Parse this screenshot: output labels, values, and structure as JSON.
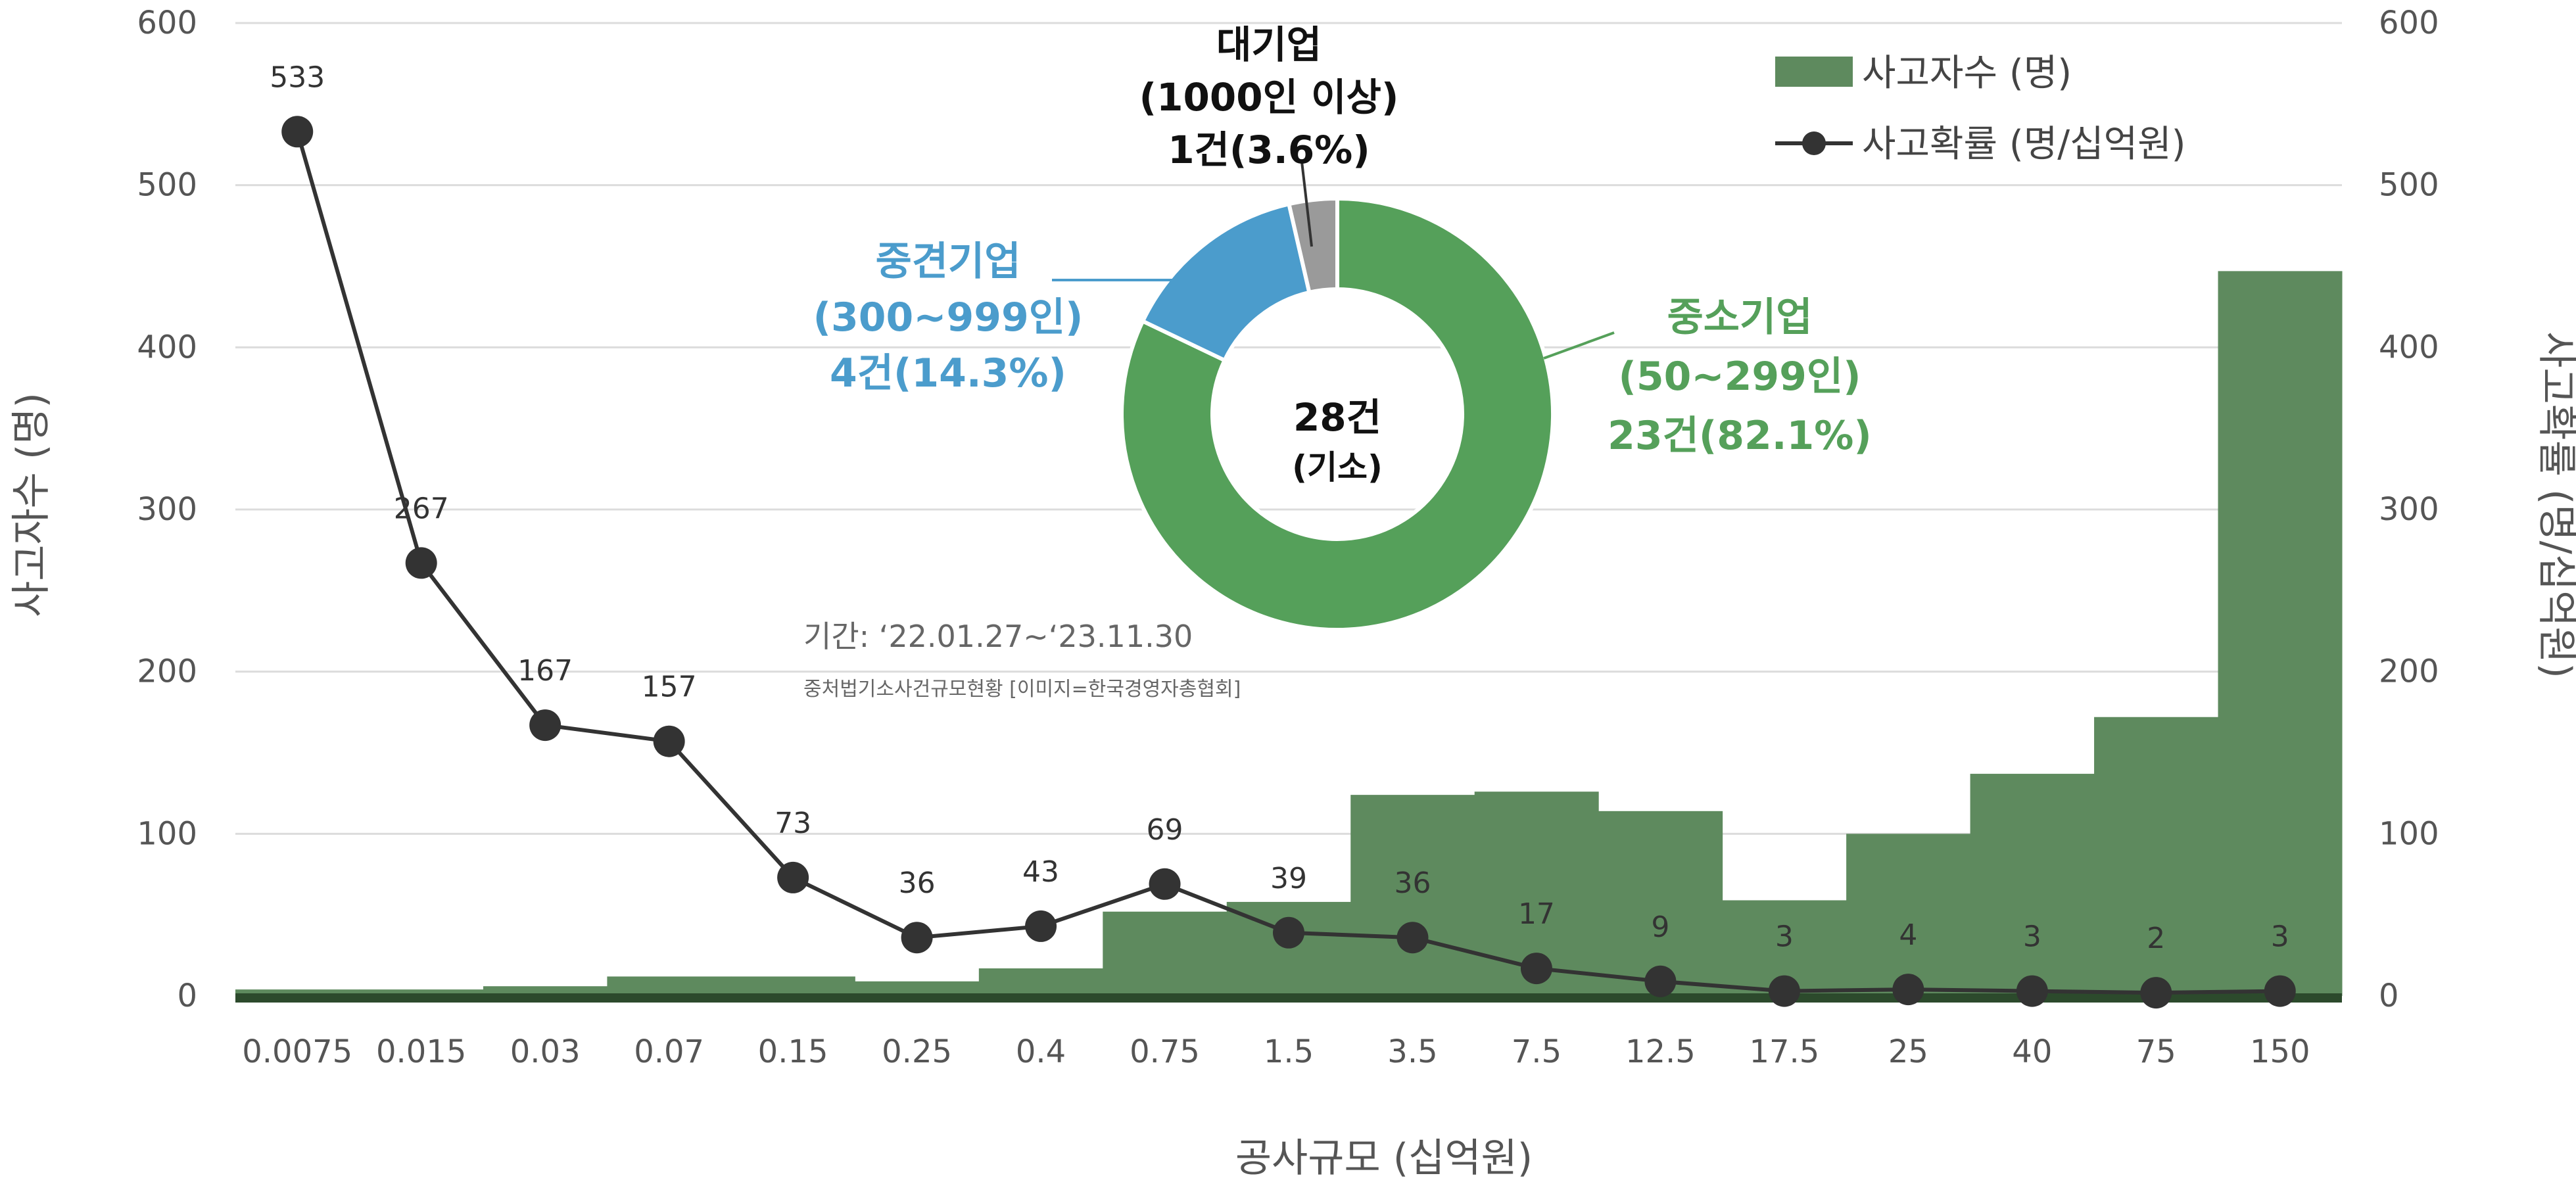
{
  "chart_data": {
    "type": "bar",
    "xlabel": "공사규모 (십억원)",
    "ylabel_left": "사고자수 (명)",
    "ylabel_right": "사고확률 (명/십억원)",
    "ylim_left": [
      0,
      600
    ],
    "ylim_right": [
      0,
      600
    ],
    "y_ticks": [
      "0",
      "100",
      "200",
      "300",
      "400",
      "500",
      "600"
    ],
    "grid": true,
    "legend_position": "top-right",
    "categories": [
      "0.0075",
      "0.015",
      "0.03",
      "0.07",
      "0.15",
      "0.25",
      "0.4",
      "0.75",
      "1.5",
      "3.5",
      "7.5",
      "12.5",
      "17.5",
      "25",
      "40",
      "75",
      "150"
    ],
    "series": [
      {
        "name": "사고자수 (명)",
        "type": "bar",
        "axis": "left",
        "color": "#5e8a5e",
        "values": [
          4,
          4,
          6,
          12,
          12,
          9,
          17,
          52,
          58,
          124,
          126,
          114,
          59,
          100,
          137,
          172,
          447
        ]
      },
      {
        "name": "사고확률 (명/십억원)",
        "type": "line",
        "axis": "right",
        "color": "#333333",
        "values": [
          533,
          267,
          167,
          157,
          73,
          36,
          43,
          69,
          39,
          36,
          17,
          9,
          3,
          4,
          3,
          2,
          3
        ],
        "labels": [
          "533",
          "267",
          "167",
          "157",
          "73",
          "36",
          "43",
          "69",
          "39",
          "36",
          "17",
          "9",
          "3",
          "4",
          "3",
          "2",
          "3"
        ]
      }
    ],
    "inset": {
      "type": "pie",
      "center_text": "28건",
      "center_subtext": "(기소)",
      "slices": [
        {
          "label": "중소기업",
          "detail": "(50~299인)",
          "value_text": "23건(82.1%)",
          "value": 82.1,
          "color": "#55a05a"
        },
        {
          "label": "중견기업",
          "detail": "(300~999인)",
          "value_text": "4건(14.3%)",
          "value": 14.3,
          "color": "#4b9ccc"
        },
        {
          "label": "대기업",
          "detail": "(1000인 이상)",
          "value_text": "1건(3.6%)",
          "value": 3.6,
          "color": "#9a9a9a"
        }
      ]
    },
    "annotations": {
      "period": "기간: ‘22.01.27~‘23.11.30",
      "source": "중처법기소사건규모현황 [이미지=한국경영자총협회]"
    }
  }
}
